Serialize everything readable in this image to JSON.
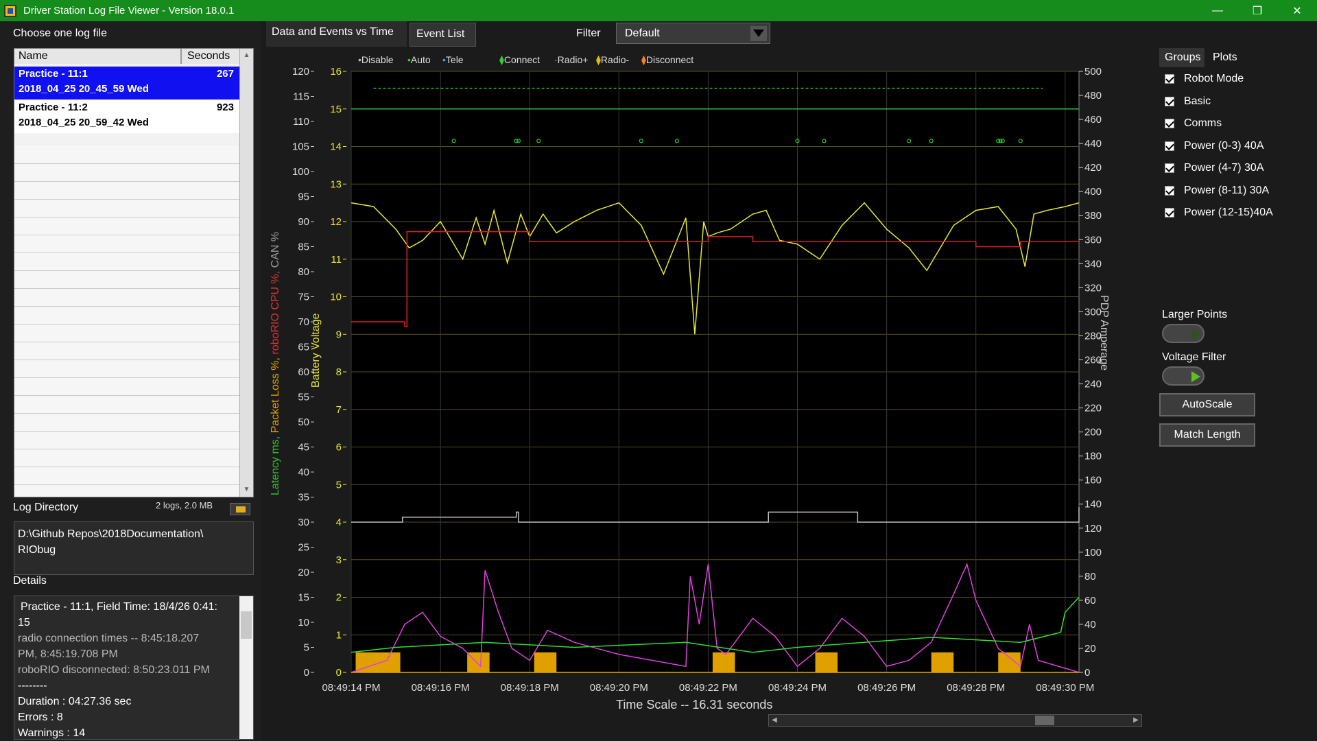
{
  "window": {
    "title": "Driver Station Log File Viewer - Version 18.0.1",
    "min": "—",
    "max": "❐",
    "close": "✕"
  },
  "left": {
    "choose_label": "Choose one log file",
    "columns": [
      "Name",
      "Seconds"
    ],
    "files": [
      {
        "name": "Practice - 11:1",
        "date": "2018_04_25 20_45_59 Wed",
        "seconds": "267",
        "selected": true
      },
      {
        "name": "Practice - 11:2",
        "date": "2018_04_25 20_59_42 Wed",
        "seconds": "923",
        "selected": false
      }
    ],
    "log_dir_label": "Log Directory",
    "log_dir_info": "2 logs, 2.0 MB",
    "log_dir_value": "D:\\Github Repos\\2018Documentation\\\nRIObug",
    "details_label": "Details",
    "details": [
      {
        "text": "Practice - 11:1, Field Time: 18/4/26 0:41:",
        "dim": false
      },
      {
        "text": "15",
        "dim": false
      },
      {
        "text": "radio connection times -- 8:45:18.207",
        "dim": true
      },
      {
        "text": "PM, 8:45:19.708 PM",
        "dim": true
      },
      {
        "text": "roboRIO disconnected: 8:50:23.011 PM",
        "dim": true
      },
      {
        "text": "--------",
        "dim": false
      },
      {
        "text": "Duration : 04:27.36 sec",
        "dim": false
      },
      {
        "text": "Errors : 8",
        "dim": false
      },
      {
        "text": "Warnings : 14",
        "dim": false
      }
    ]
  },
  "tabs": {
    "graph": "Data and Events vs Time",
    "events": "Event List",
    "filter_label": "Filter",
    "filter_value": "Default"
  },
  "legend": [
    {
      "label": "Disable",
      "color": "#bbbbbb",
      "glyph": "•"
    },
    {
      "label": "Auto",
      "color": "#30d030",
      "glyph": "•"
    },
    {
      "label": "Tele",
      "color": "#40a0ff",
      "glyph": "•"
    },
    {
      "label": "Connect",
      "color": "#30d030",
      "glyph": "⧫"
    },
    {
      "label": "Radio+",
      "color": "#bbbbbb",
      "glyph": "·"
    },
    {
      "label": "Radio-",
      "color": "#e0c000",
      "glyph": "⧫"
    },
    {
      "label": "Disconnect",
      "color": "#ff8020",
      "glyph": "⧫"
    }
  ],
  "axes": {
    "left_outer_label_parts": [
      {
        "text": "Latency ms, ",
        "color": "#30c030"
      },
      {
        "text": "Packet Loss %, ",
        "color": "#e0a000"
      },
      {
        "text": "roboRIO CPU %, ",
        "color": "#e03030"
      },
      {
        "text": "CAN %",
        "color": "#999999"
      }
    ],
    "left_inner_label": "Battery Voltage",
    "right_label": "PDP Amperage",
    "time_scale": "Time Scale -- 16.31 seconds"
  },
  "chart_data": {
    "type": "line",
    "x_ticks": [
      "08:49:14 PM",
      "08:49:16 PM",
      "08:49:18 PM",
      "08:49:20 PM",
      "08:49:22 PM",
      "08:49:24 PM",
      "08:49:26 PM",
      "08:49:28 PM",
      "08:49:30 PM"
    ],
    "x_range_seconds": [
      0,
      16.31
    ],
    "y_outer_ticks": [
      0,
      5,
      10,
      15,
      20,
      25,
      30,
      35,
      40,
      45,
      50,
      55,
      60,
      65,
      70,
      75,
      80,
      85,
      90,
      95,
      100,
      105,
      110,
      115,
      120
    ],
    "y_volt_ticks": [
      0,
      1,
      2,
      3,
      4,
      5,
      6,
      7,
      8,
      9,
      10,
      11,
      12,
      13,
      14,
      15,
      16
    ],
    "y_amp_ticks": [
      0,
      20,
      40,
      60,
      80,
      100,
      120,
      140,
      160,
      180,
      200,
      220,
      240,
      260,
      280,
      300,
      320,
      340,
      360,
      380,
      400,
      420,
      440,
      460,
      480,
      500
    ],
    "series": [
      {
        "name": "Battery Voltage",
        "color": "#e8e830",
        "axis": "volt",
        "x": [
          0,
          0.5,
          1,
          1.3,
          1.6,
          2.0,
          2.5,
          2.8,
          3.0,
          3.2,
          3.5,
          3.8,
          4.0,
          4.3,
          4.6,
          5.0,
          5.5,
          6.0,
          6.5,
          7.0,
          7.5,
          7.7,
          7.9,
          8.0,
          8.2,
          8.5,
          9.0,
          9.3,
          9.6,
          10.0,
          10.5,
          11.0,
          11.5,
          12.0,
          12.5,
          12.9,
          13.2,
          13.5,
          14.0,
          14.5,
          14.9,
          15.1,
          15.3,
          15.6,
          16.0,
          16.31
        ],
        "y": [
          12.5,
          12.4,
          11.8,
          11.3,
          11.5,
          12.0,
          11.0,
          12.1,
          11.4,
          12.3,
          10.9,
          12.2,
          11.6,
          12.2,
          11.7,
          12.0,
          12.3,
          12.5,
          11.9,
          10.6,
          12.1,
          9.0,
          12.0,
          11.6,
          11.7,
          11.8,
          12.2,
          12.3,
          11.5,
          11.4,
          11.0,
          11.9,
          12.5,
          11.8,
          11.3,
          10.7,
          11.3,
          11.9,
          12.3,
          12.4,
          11.8,
          10.8,
          12.2,
          12.3,
          12.4,
          12.5
        ]
      },
      {
        "name": "roboRIO CPU %",
        "color": "#e02020",
        "axis": "outer",
        "x": [
          0,
          1.2,
          1.25,
          2.0,
          4.0,
          6.5,
          8.0,
          9.0,
          11.0,
          13.0,
          14.0,
          15.0,
          15.8,
          16.31
        ],
        "y": [
          70,
          69,
          88,
          88,
          86,
          86,
          87,
          86,
          86,
          86,
          85,
          86,
          86,
          86
        ]
      },
      {
        "name": "CAN %",
        "color": "#c0c0c0",
        "axis": "outer",
        "x": [
          0,
          1.1,
          1.15,
          3.7,
          3.75,
          9.3,
          9.35,
          11.3,
          11.35,
          16.2,
          16.31
        ],
        "y": [
          30,
          30,
          31,
          32,
          30,
          30,
          32,
          32,
          30,
          30,
          33
        ]
      },
      {
        "name": "Tele",
        "color": "#30c030",
        "axis": "volt",
        "x": [
          0,
          16.31
        ],
        "y": [
          15.0,
          15.0
        ]
      },
      {
        "name": "Auto",
        "color": "#30c030",
        "axis": "volt",
        "x": [
          0.5,
          15.5
        ],
        "y": [
          15.55,
          15.55
        ]
      },
      {
        "name": "PDP Total",
        "color": "#e040e0",
        "axis": "amp",
        "x": [
          0,
          0.8,
          1.2,
          1.6,
          2.0,
          2.5,
          2.9,
          3.0,
          3.3,
          3.6,
          4.0,
          4.4,
          5.0,
          6.0,
          7.5,
          7.6,
          7.8,
          8.0,
          8.2,
          8.4,
          9.0,
          9.5,
          10.0,
          10.5,
          11.0,
          11.5,
          12.0,
          12.5,
          13.0,
          13.5,
          13.8,
          14.0,
          14.5,
          15.0,
          15.2,
          15.4,
          16.31
        ],
        "y": [
          0,
          10,
          40,
          50,
          30,
          20,
          5,
          85,
          50,
          20,
          10,
          35,
          25,
          15,
          5,
          80,
          40,
          90,
          20,
          15,
          45,
          30,
          5,
          20,
          45,
          30,
          5,
          10,
          25,
          65,
          90,
          60,
          20,
          5,
          40,
          10,
          0
        ]
      },
      {
        "name": "Latency ms",
        "color": "#30e030",
        "axis": "outer",
        "x": [
          0,
          1.0,
          3.0,
          5.0,
          7.5,
          9.0,
          10.0,
          13.0,
          15.0,
          15.9,
          16.0,
          16.31
        ],
        "y": [
          4,
          5,
          6,
          5,
          6,
          4,
          5,
          7,
          6,
          8,
          12,
          15
        ]
      },
      {
        "name": "Packet Loss %",
        "color": "#e8a800",
        "axis": "outer",
        "x": [
          0,
          16.31
        ],
        "y": [
          0,
          0
        ]
      }
    ],
    "packet_loss_bars": [
      {
        "x0": 0.1,
        "x1": 1.1,
        "value": 4
      },
      {
        "x0": 2.6,
        "x1": 3.1,
        "value": 4
      },
      {
        "x0": 4.1,
        "x1": 4.6,
        "value": 4
      },
      {
        "x0": 8.1,
        "x1": 8.6,
        "value": 4
      },
      {
        "x0": 10.4,
        "x1": 10.9,
        "value": 4
      },
      {
        "x0": 13.0,
        "x1": 13.5,
        "value": 4
      },
      {
        "x0": 14.5,
        "x1": 15.0,
        "value": 4
      }
    ],
    "connect_events": [
      2.3,
      3.7,
      3.75,
      4.2,
      6.5,
      7.3,
      10.0,
      10.6,
      12.5,
      13.0,
      14.5,
      14.55,
      14.6,
      15.0
    ]
  },
  "right": {
    "tab_groups": "Groups",
    "tab_plots": "Plots",
    "checkboxes": [
      "Robot Mode",
      "Basic",
      "Comms",
      "Power (0-3) 40A",
      "Power (4-7) 30A",
      "Power (8-11) 30A",
      "Power (12-15)40A"
    ],
    "larger_points": "Larger Points",
    "voltage_filter": "Voltage Filter",
    "autoscale": "AutoScale",
    "match_length": "Match Length"
  }
}
